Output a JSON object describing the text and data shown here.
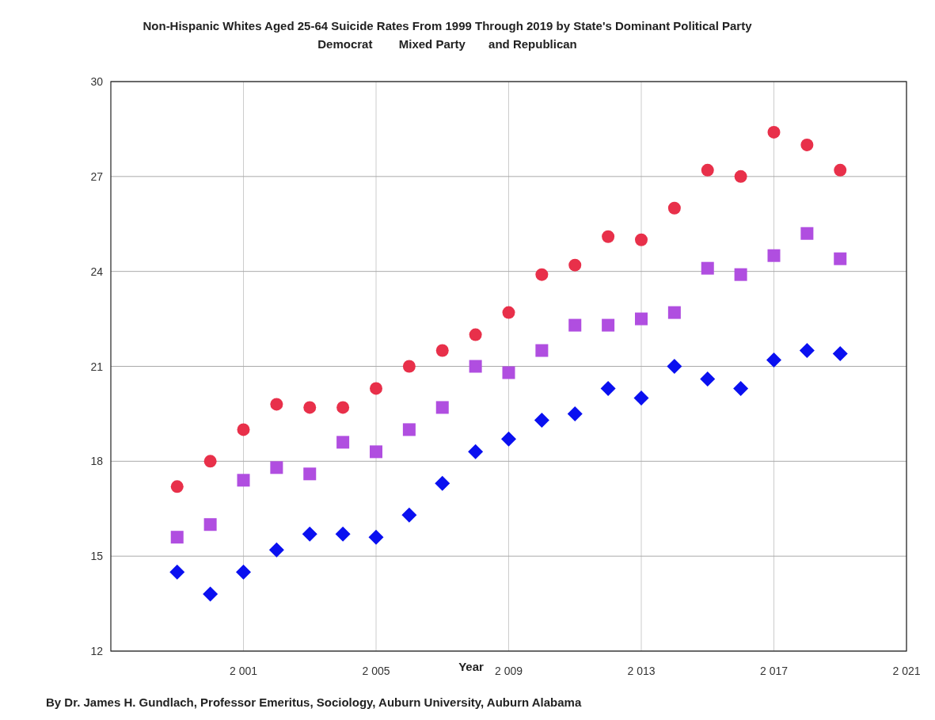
{
  "chart_data": {
    "type": "scatter",
    "title": "Non-Hispanic Whites Aged 25-64 Suicide Rates From 1999 Through 2019 by State's Dominant Political Party",
    "subtitle": "Democrat        Mixed Party       and Republican",
    "xlabel": "Year",
    "annotations": [
      "By Dr. James H. Gundlach, Professor Emeritus, Sociology, Auburn University, Auburn Alabama"
    ],
    "x": [
      1999,
      2000,
      2001,
      2002,
      2003,
      2004,
      2005,
      2006,
      2007,
      2008,
      2009,
      2010,
      2011,
      2012,
      2013,
      2014,
      2015,
      2016,
      2017,
      2018,
      2019
    ],
    "series": [
      {
        "color": "#e8304a",
        "marker": "circle",
        "values": [
          17.2,
          18.0,
          19.0,
          19.8,
          19.7,
          19.7,
          20.3,
          21.0,
          21.5,
          22.0,
          22.7,
          23.9,
          24.2,
          25.1,
          25.0,
          26.0,
          27.2,
          27.0,
          28.4,
          28.0,
          27.2
        ]
      },
      {
        "color": "#b04ee0",
        "marker": "square",
        "values": [
          15.6,
          16.0,
          17.4,
          17.8,
          17.6,
          18.6,
          18.3,
          19.0,
          19.7,
          21.0,
          20.8,
          21.5,
          22.3,
          22.3,
          22.5,
          22.7,
          24.1,
          23.9,
          24.5,
          25.2,
          24.4
        ]
      },
      {
        "color": "#0a10f0",
        "marker": "diamond",
        "values": [
          14.5,
          13.8,
          14.5,
          15.2,
          15.7,
          15.7,
          15.6,
          16.3,
          17.3,
          18.3,
          18.7,
          19.3,
          19.5,
          20.3,
          20.0,
          21.0,
          20.6,
          20.3,
          21.2,
          21.5,
          21.4
        ]
      }
    ],
    "xlim": [
      1997,
      2021
    ],
    "xticks": [
      {
        "value": 2001,
        "label": "2 001"
      },
      {
        "value": 2005,
        "label": "2 005"
      },
      {
        "value": 2009,
        "label": "2 009"
      },
      {
        "value": 2013,
        "label": "2 013"
      },
      {
        "value": 2017,
        "label": "2 017"
      },
      {
        "value": 2021,
        "label": "2 021"
      }
    ],
    "ylim": [
      12,
      30
    ],
    "yticks": [
      12,
      15,
      18,
      21,
      24,
      27,
      30
    ],
    "grid": true
  }
}
